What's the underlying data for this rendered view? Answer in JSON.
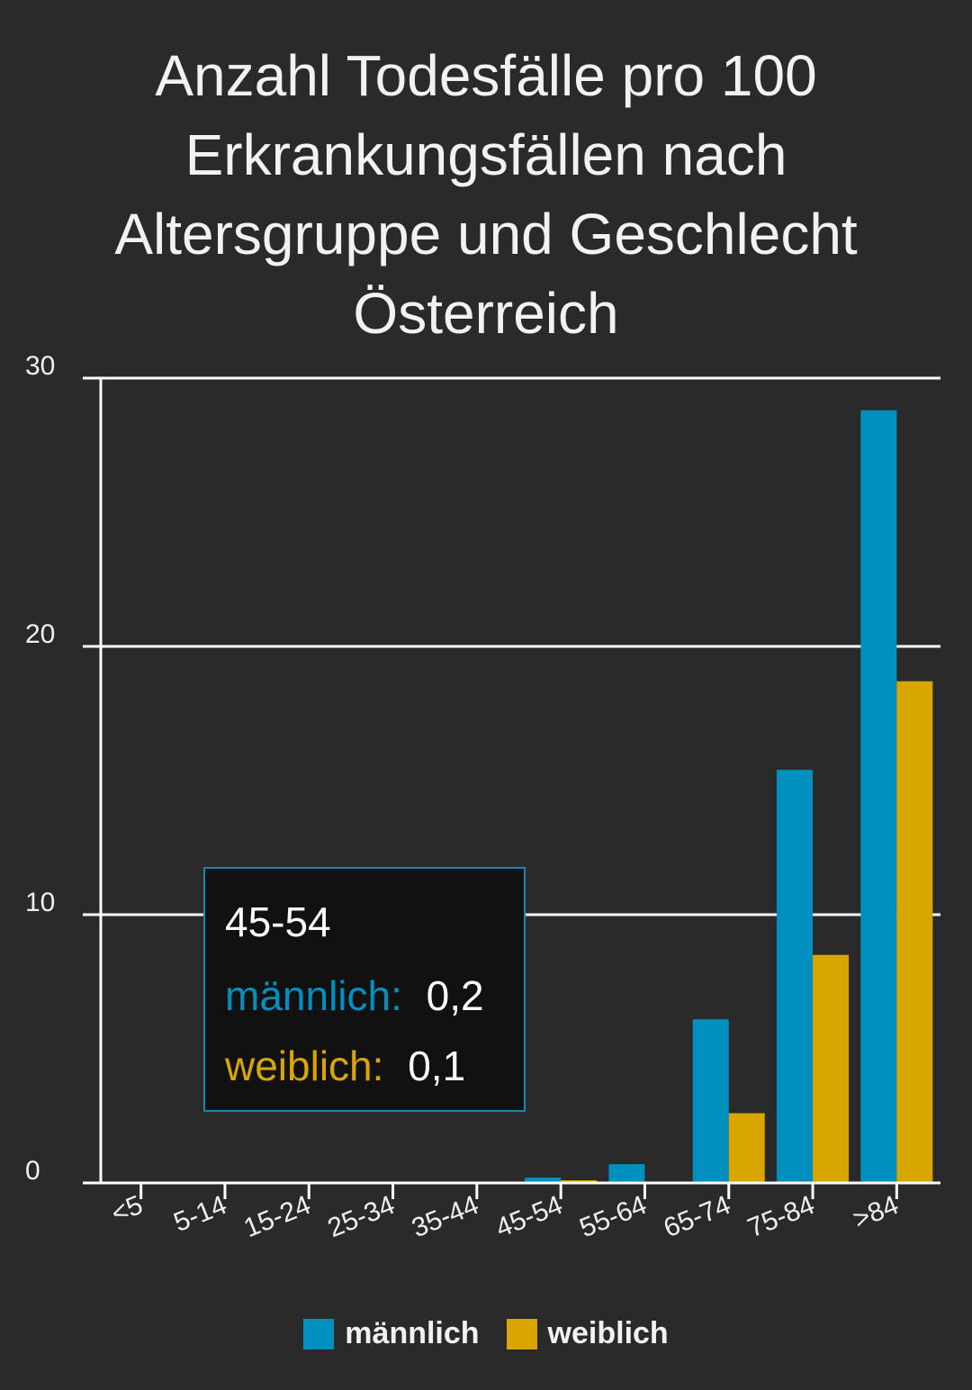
{
  "title_lines": [
    "Anzahl Todesfälle pro 100",
    "Erkrankungsfällen nach",
    "Altersgruppe und Geschlecht",
    "Österreich"
  ],
  "colors": {
    "maennlich": "#0090c0",
    "weiblich": "#d9a600",
    "background": "#2a2a2a",
    "grid": "#ffffff"
  },
  "legend": {
    "maennlich": "männlich",
    "weiblich": "weiblich"
  },
  "tooltip": {
    "category": "45-54",
    "maennlich_label": "männlich:",
    "maennlich_value": "0,2",
    "weiblich_label": "weiblich:",
    "weiblich_value": "0,1"
  },
  "chart_data": {
    "type": "bar",
    "title": "Anzahl Todesfälle pro 100 Erkrankungsfällen nach Altersgruppe und Geschlecht Österreich",
    "categories": [
      "<5",
      "5-14",
      "15-24",
      "25-34",
      "35-44",
      "45-54",
      "55-64",
      "65-74",
      "75-84",
      ">84"
    ],
    "series": [
      {
        "name": "männlich",
        "values": [
          0,
          0,
          0,
          0,
          0,
          0.2,
          0.7,
          6.1,
          15.4,
          28.8
        ]
      },
      {
        "name": "weiblich",
        "values": [
          0,
          0,
          0,
          0,
          0,
          0.1,
          0,
          2.6,
          8.5,
          18.7
        ]
      }
    ],
    "yticks": [
      "0",
      "10",
      "20",
      "30"
    ],
    "ylim": [
      0,
      30
    ],
    "grid": true,
    "legend_position": "bottom"
  }
}
